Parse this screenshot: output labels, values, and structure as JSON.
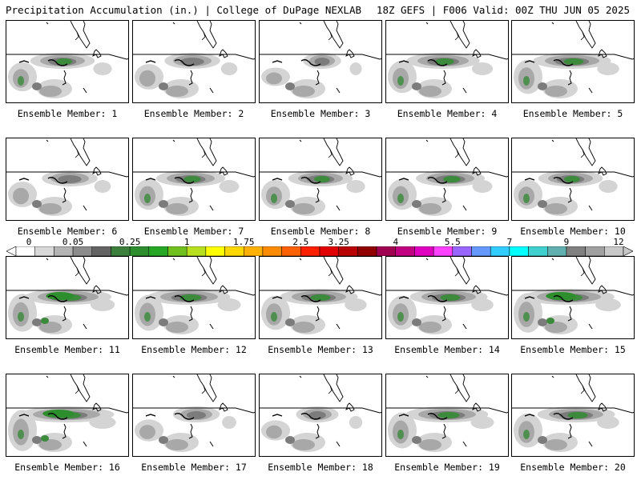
{
  "header": {
    "left": "Precipitation Accumulation (in.) | College of DuPage NEXLAB",
    "right": "18Z GEFS | F006 Valid: 00Z THU JUN 05 2025"
  },
  "colorbar": {
    "labels": [
      "0",
      "0.05",
      "0.25",
      "1",
      "1.75",
      "2.5",
      "3.25",
      "4",
      "5.5",
      "7",
      "9",
      "12"
    ],
    "colors": [
      "#ffffff",
      "#d8d8d8",
      "#b4b4b4",
      "#8c8c8c",
      "#646464",
      "#3c7f3c",
      "#2d8e2d",
      "#26a826",
      "#70c020",
      "#b8e020",
      "#ffff00",
      "#ffd700",
      "#ffb000",
      "#ff8c00",
      "#ff6000",
      "#ff2000",
      "#e00000",
      "#b80000",
      "#900000",
      "#a00050",
      "#c00080",
      "#e000c0",
      "#ff40ff",
      "#9966ff",
      "#6699ff",
      "#33ccff",
      "#00ffff",
      "#40d0d0",
      "#60b0b0",
      "#808080",
      "#a0a0a0",
      "#c8c8c8"
    ]
  },
  "members": [
    {
      "label": "Ensemble Member: 1",
      "intensity": 0.55
    },
    {
      "label": "Ensemble Member: 2",
      "intensity": 0.45
    },
    {
      "label": "Ensemble Member: 3",
      "intensity": 0.25
    },
    {
      "label": "Ensemble Member: 4",
      "intensity": 0.65
    },
    {
      "label": "Ensemble Member: 5",
      "intensity": 0.7
    },
    {
      "label": "Ensemble Member: 6",
      "intensity": 0.45
    },
    {
      "label": "Ensemble Member: 7",
      "intensity": 0.6
    },
    {
      "label": "Ensemble Member: 8",
      "intensity": 0.55
    },
    {
      "label": "Ensemble Member: 9",
      "intensity": 0.6
    },
    {
      "label": "Ensemble Member: 10",
      "intensity": 0.55
    },
    {
      "label": "Ensemble Member: 11",
      "intensity": 0.8
    },
    {
      "label": "Ensemble Member: 12",
      "intensity": 0.75
    },
    {
      "label": "Ensemble Member: 13",
      "intensity": 0.7
    },
    {
      "label": "Ensemble Member: 14",
      "intensity": 0.7
    },
    {
      "label": "Ensemble Member: 15",
      "intensity": 0.85
    },
    {
      "label": "Ensemble Member: 16",
      "intensity": 0.9
    },
    {
      "label": "Ensemble Member: 17",
      "intensity": 0.35
    },
    {
      "label": "Ensemble Member: 18",
      "intensity": 0.3
    },
    {
      "label": "Ensemble Member: 19",
      "intensity": 0.75
    },
    {
      "label": "Ensemble Member: 20",
      "intensity": 0.7
    }
  ]
}
